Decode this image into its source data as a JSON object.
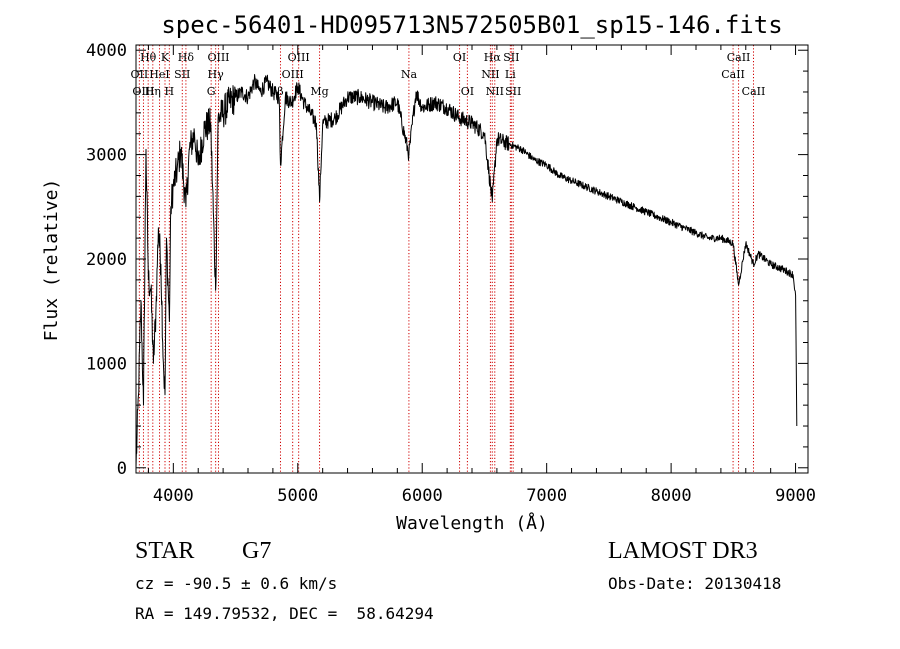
{
  "chart_data": {
    "type": "line",
    "title": "spec-56401-HD095713N572505B01_sp15-146.fits",
    "xlabel": "Wavelength (Å)",
    "ylabel": "Flux (relative)",
    "xlim": [
      3700,
      9100
    ],
    "ylim": [
      -50,
      4050
    ],
    "xticks": [
      4000,
      5000,
      6000,
      7000,
      8000,
      9000
    ],
    "yticks": [
      0,
      1000,
      2000,
      3000,
      4000
    ],
    "series": [
      {
        "name": "spectrum",
        "x": [
          3700,
          3720,
          3740,
          3760,
          3780,
          3800,
          3820,
          3840,
          3860,
          3880,
          3900,
          3920,
          3933,
          3945,
          3968,
          3980,
          4000,
          4030,
          4060,
          4101,
          4130,
          4170,
          4200,
          4250,
          4300,
          4340,
          4360,
          4400,
          4450,
          4500,
          4550,
          4600,
          4650,
          4700,
          4750,
          4800,
          4850,
          4861,
          4900,
          4950,
          5000,
          5050,
          5100,
          5150,
          5175,
          5200,
          5300,
          5400,
          5500,
          5600,
          5700,
          5800,
          5893,
          5950,
          6000,
          6100,
          6200,
          6300,
          6400,
          6500,
          6563,
          6600,
          6700,
          6800,
          6900,
          7000,
          7100,
          7200,
          7300,
          7400,
          7500,
          7600,
          7700,
          7800,
          7900,
          8000,
          8100,
          8200,
          8300,
          8400,
          8498,
          8542,
          8600,
          8662,
          8700,
          8800,
          8900,
          8980,
          9000,
          9010
        ],
        "values": [
          0,
          700,
          1600,
          600,
          3050,
          1800,
          1700,
          1000,
          1500,
          2300,
          1950,
          1000,
          700,
          2200,
          1400,
          2500,
          2700,
          2850,
          3050,
          2500,
          3050,
          3200,
          2900,
          3250,
          3300,
          1700,
          3350,
          3400,
          3500,
          3550,
          3600,
          3550,
          3700,
          3600,
          3700,
          3600,
          3550,
          2900,
          3550,
          3500,
          3650,
          3500,
          3400,
          3300,
          2550,
          3300,
          3350,
          3550,
          3550,
          3500,
          3450,
          3500,
          3000,
          3600,
          3450,
          3500,
          3450,
          3350,
          3300,
          3200,
          2550,
          3150,
          3100,
          3050,
          2950,
          2900,
          2800,
          2750,
          2700,
          2650,
          2600,
          2550,
          2500,
          2450,
          2400,
          2350,
          2300,
          2250,
          2200,
          2200,
          2150,
          1750,
          2150,
          1950,
          2050,
          1950,
          1900,
          1850,
          1650,
          400
        ]
      }
    ],
    "lines": [
      {
        "name": "OII",
        "x": 3727,
        "row": 1
      },
      {
        "name": "OIII",
        "x": 3760,
        "row": 2
      },
      {
        "name": "Hθ",
        "x": 3798,
        "row": 0
      },
      {
        "name": "Hη",
        "x": 3835,
        "row": 2
      },
      {
        "name": "HeI",
        "x": 3889,
        "row": 1
      },
      {
        "name": "K",
        "x": 3933,
        "row": 0
      },
      {
        "name": "H",
        "x": 3968,
        "row": 2
      },
      {
        "name": "SII",
        "x": 4072,
        "row": 1
      },
      {
        "name": "Hδ",
        "x": 4101,
        "row": 0
      },
      {
        "name": "G",
        "x": 4304,
        "row": 2
      },
      {
        "name": "Hγ",
        "x": 4340,
        "row": 1
      },
      {
        "name": "OIII",
        "x": 4363,
        "row": 0
      },
      {
        "name": "β",
        "x": 4861,
        "row": 2
      },
      {
        "name": "OIII",
        "x": 4959,
        "row": 1
      },
      {
        "name": "OIII",
        "x": 5007,
        "row": 0
      },
      {
        "name": "Mg",
        "x": 5175,
        "row": 2
      },
      {
        "name": "Na",
        "x": 5893,
        "row": 1
      },
      {
        "name": "OI",
        "x": 6300,
        "row": 0
      },
      {
        "name": "OI",
        "x": 6363,
        "row": 2
      },
      {
        "name": "NII",
        "x": 6548,
        "row": 1
      },
      {
        "name": "Hα",
        "x": 6563,
        "row": 0
      },
      {
        "name": "NII",
        "x": 6583,
        "row": 2
      },
      {
        "name": "Li",
        "x": 6708,
        "row": 1
      },
      {
        "name": "SII",
        "x": 6716,
        "row": 0
      },
      {
        "name": "SII",
        "x": 6731,
        "row": 2
      },
      {
        "name": "CaII",
        "x": 8498,
        "row": 1
      },
      {
        "name": "CaII",
        "x": 8542,
        "row": 0
      },
      {
        "name": "CaII",
        "x": 8662,
        "row": 2
      }
    ],
    "line_color": "#d00000"
  },
  "info": {
    "object_class": "STAR",
    "subclass": "G7",
    "survey": "LAMOST DR3",
    "cz": "cz = -90.5 ± 0.6 km/s",
    "obs_date": "Obs-Date: 20130418",
    "coords": "RA = 149.79532, DEC =  58.64294"
  }
}
